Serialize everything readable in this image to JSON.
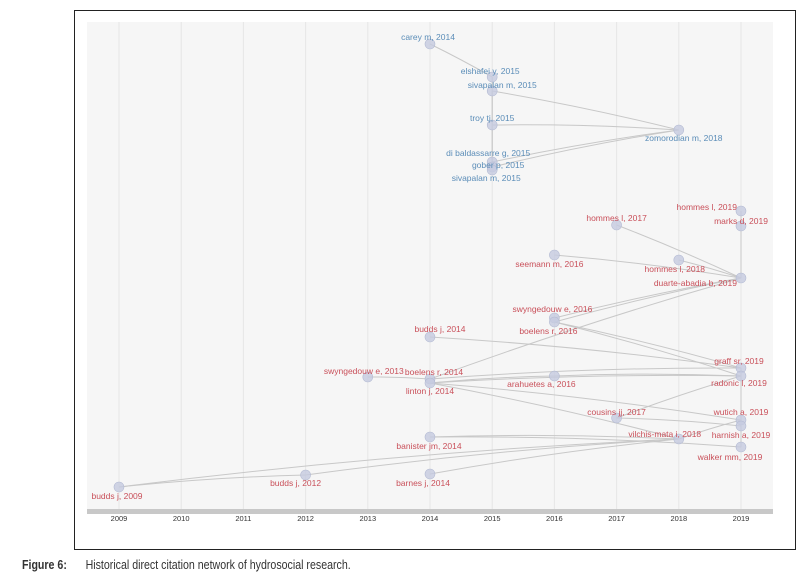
{
  "caption": {
    "label": "Figure 6:",
    "text": "Historical direct citation network of hydrosocial research."
  },
  "chart_data": {
    "type": "network",
    "x_axis_ticks": [
      "2009",
      "2010",
      "2011",
      "2012",
      "2013",
      "2014",
      "2015",
      "2016",
      "2017",
      "2018",
      "2019"
    ],
    "colors": {
      "blue_cluster": "#5b8db8",
      "red_cluster": "#c9505a",
      "node_fill": "#c5cbe0",
      "edge": "#c8c8c8",
      "background": "#f6f6f6",
      "axis_bar": "#c8c8c8"
    },
    "nodes": [
      {
        "label": "carey m, 2014",
        "year": 2014,
        "cluster": "blue"
      },
      {
        "label": "elshafei y, 2015",
        "year": 2015,
        "cluster": "blue"
      },
      {
        "label": "sivapalan m, 2015",
        "year": 2015,
        "cluster": "blue"
      },
      {
        "label": "troy tj, 2015",
        "year": 2015,
        "cluster": "blue"
      },
      {
        "label": "zomorodian m, 2018",
        "year": 2018,
        "cluster": "blue"
      },
      {
        "label": "di baldassarre g, 2015",
        "year": 2015,
        "cluster": "blue"
      },
      {
        "label": "gober p, 2015",
        "year": 2015,
        "cluster": "blue"
      },
      {
        "label": "sivapalan m, 2015",
        "year": 2015,
        "cluster": "blue"
      },
      {
        "label": "hommes l, 2019",
        "year": 2019,
        "cluster": "red"
      },
      {
        "label": "marks d, 2019",
        "year": 2019,
        "cluster": "red"
      },
      {
        "label": "hommes l, 2017",
        "year": 2017,
        "cluster": "red"
      },
      {
        "label": "seemann m, 2016",
        "year": 2016,
        "cluster": "red"
      },
      {
        "label": "hommes l, 2018",
        "year": 2018,
        "cluster": "red"
      },
      {
        "label": "duarte-abadia b, 2019",
        "year": 2019,
        "cluster": "red"
      },
      {
        "label": "swyngedouw e, 2016",
        "year": 2016,
        "cluster": "red"
      },
      {
        "label": "boelens r, 2016",
        "year": 2016,
        "cluster": "red"
      },
      {
        "label": "budds j, 2014",
        "year": 2014,
        "cluster": "red"
      },
      {
        "label": "swyngedouw e, 2013",
        "year": 2013,
        "cluster": "red"
      },
      {
        "label": "boelens r, 2014",
        "year": 2014,
        "cluster": "red"
      },
      {
        "label": "linton j, 2014",
        "year": 2014,
        "cluster": "red"
      },
      {
        "label": "arahuetes a, 2016",
        "year": 2016,
        "cluster": "red"
      },
      {
        "label": "graff sr, 2019",
        "year": 2019,
        "cluster": "red"
      },
      {
        "label": "radonic l, 2019",
        "year": 2019,
        "cluster": "red"
      },
      {
        "label": "cousins jj, 2017",
        "year": 2017,
        "cluster": "red"
      },
      {
        "label": "wutich a, 2019",
        "year": 2019,
        "cluster": "red"
      },
      {
        "label": "harnish a, 2019",
        "year": 2019,
        "cluster": "red"
      },
      {
        "label": "vilchis-mata i, 2018",
        "year": 2018,
        "cluster": "red"
      },
      {
        "label": "banister jm, 2014",
        "year": 2014,
        "cluster": "red"
      },
      {
        "label": "walker mm, 2019",
        "year": 2019,
        "cluster": "red"
      },
      {
        "label": "budds j, 2012",
        "year": 2012,
        "cluster": "red"
      },
      {
        "label": "barnes j, 2014",
        "year": 2014,
        "cluster": "red"
      },
      {
        "label": "budds j, 2009",
        "year": 2009,
        "cluster": "red"
      }
    ],
    "edges": [
      [
        1,
        0
      ],
      [
        2,
        1
      ],
      [
        3,
        2
      ],
      [
        4,
        2
      ],
      [
        4,
        3
      ],
      [
        4,
        5
      ],
      [
        4,
        6
      ],
      [
        7,
        3
      ],
      [
        5,
        2
      ],
      [
        9,
        8
      ],
      [
        13,
        9
      ],
      [
        13,
        10
      ],
      [
        13,
        11
      ],
      [
        13,
        12
      ],
      [
        13,
        14
      ],
      [
        13,
        15
      ],
      [
        13,
        18
      ],
      [
        21,
        16
      ],
      [
        18,
        17
      ],
      [
        21,
        18
      ],
      [
        22,
        19
      ],
      [
        22,
        20
      ],
      [
        20,
        19
      ],
      [
        21,
        15
      ],
      [
        22,
        15
      ],
      [
        22,
        23
      ],
      [
        24,
        19
      ],
      [
        26,
        19
      ],
      [
        25,
        23
      ],
      [
        28,
        27
      ],
      [
        26,
        27
      ],
      [
        24,
        26
      ],
      [
        29,
        31
      ],
      [
        26,
        29
      ],
      [
        26,
        30
      ],
      [
        26,
        31
      ],
      [
        22,
        21
      ],
      [
        24,
        22
      ],
      [
        25,
        24
      ],
      [
        28,
        25
      ]
    ]
  }
}
